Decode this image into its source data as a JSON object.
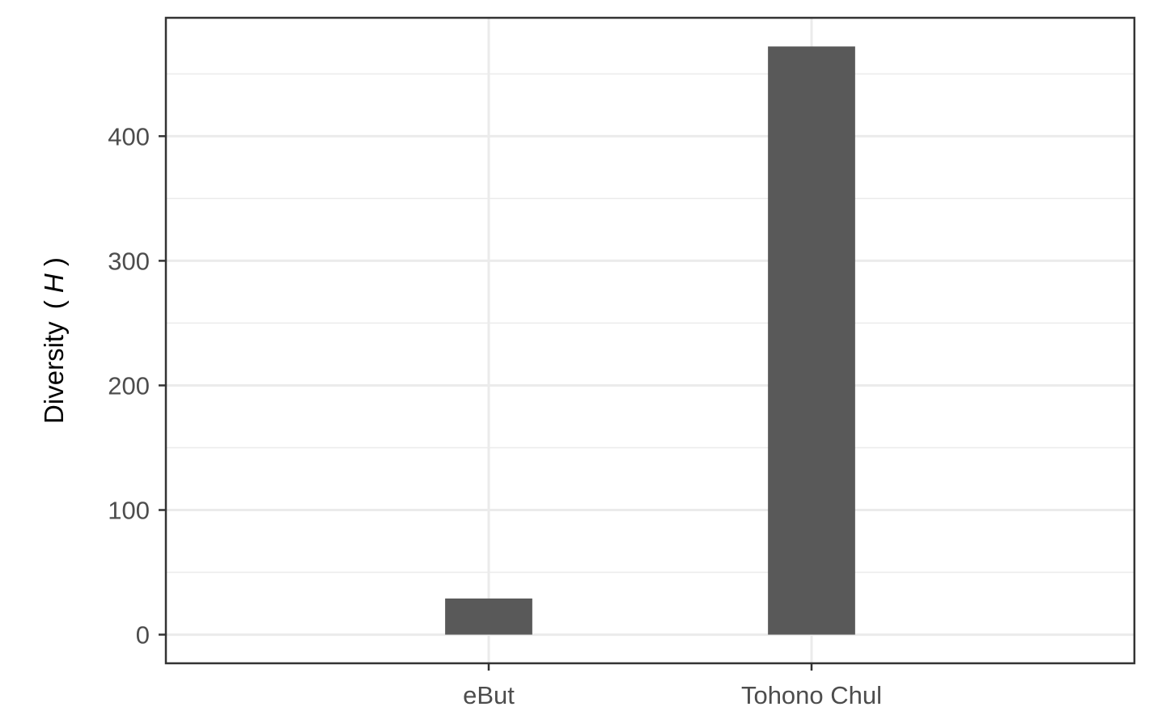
{
  "chart_data": {
    "type": "bar",
    "title": "",
    "xlabel": "",
    "ylabel": "Diversity",
    "ylabel_symbol": "H",
    "categories": [
      "eBut",
      "Tohono Chul"
    ],
    "values": [
      29,
      472
    ],
    "ylim": [
      -23,
      495
    ],
    "yticks": [
      0,
      100,
      200,
      300,
      400
    ],
    "yticks_minor": [
      50,
      150,
      250,
      350,
      450
    ],
    "grid": true,
    "legend": "none",
    "colors": {
      "bar": "#595959",
      "grid": "#ebebeb",
      "panel_border": "#333333",
      "tick_label": "#4d4d4d",
      "axis_title": "#000000"
    }
  }
}
